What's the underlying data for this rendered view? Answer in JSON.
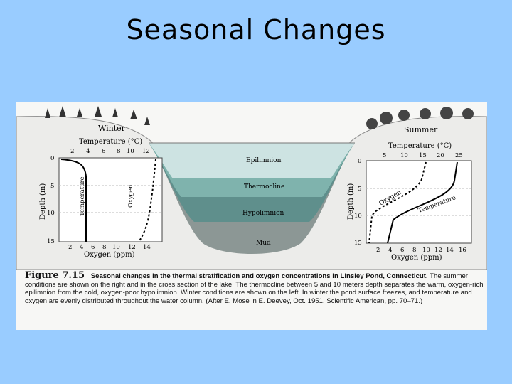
{
  "title": "Seasonal Changes",
  "figure": {
    "winter": {
      "season": "Winter",
      "temp_axis_title": "Temperature (°C)",
      "temp_ticks": [
        "2",
        "4",
        "6",
        "8",
        "10",
        "12"
      ],
      "depth_axis_title": "Depth (m)",
      "depth_ticks": [
        "0",
        "5",
        "10",
        "15"
      ],
      "oxygen_ticks": [
        "2",
        "4",
        "6",
        "8",
        "10",
        "12",
        "14"
      ],
      "oxygen_axis_title": "Oxygen (ppm)",
      "temp_curve_label": "Temperature",
      "oxygen_curve_label": "Oxygen"
    },
    "summer": {
      "season": "Summer",
      "temp_axis_title": "Temperature (°C)",
      "temp_ticks": [
        "5",
        "10",
        "15",
        "20",
        "25"
      ],
      "depth_axis_title": "Depth (m)",
      "depth_ticks": [
        "0",
        "5",
        "10",
        "15"
      ],
      "oxygen_ticks": [
        "2",
        "4",
        "6",
        "8",
        "10",
        "12",
        "14",
        "16"
      ],
      "oxygen_axis_title": "Oxygen (ppm)",
      "temp_curve_label": "Temperature",
      "oxygen_curve_label": "Oxygen"
    },
    "lake_layers": {
      "epilimnion": "Epilimnion",
      "thermocline": "Thermocline",
      "hypolimnion": "Hypolimnion",
      "mud": "Mud"
    },
    "caption": {
      "figure_number": "Figure 7.15",
      "heading": "Seasonal changes in the thermal stratification and oxygen concentrations in Linsley Pond, Connecticut.",
      "body": "The summer conditions are shown on the right and in the cross section of the lake. The thermocline between 5 and 10 meters depth separates the warm, oxygen-rich epilimnion from the cold, oxygen-poor hypolimnion. Winter conditions are shown on the left. In winter the pond surface freezes, and temperature and oxygen are evenly distributed throughout the water column. (After E. Mose in E. Deevey, Oct. 1951. Scientific American, pp. 70–71.)"
    }
  },
  "colors": {
    "background": "#99ccff",
    "epilimnion": "#c8e0e0",
    "thermocline": "#7fb3ad",
    "hypolimnion": "#5f8f8c",
    "mud": "#8c9795",
    "land": "#e8e8e4"
  }
}
